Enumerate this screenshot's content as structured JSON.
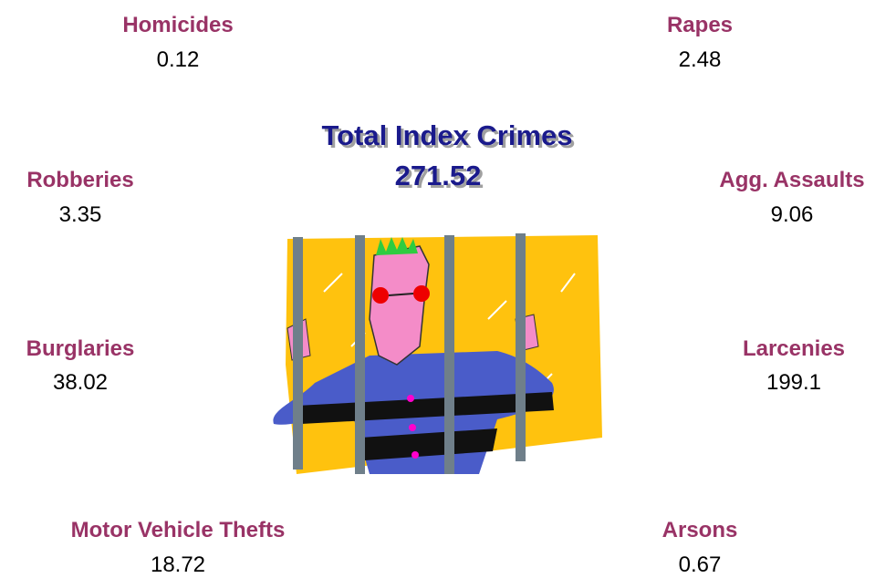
{
  "title": "Total Index Crimes",
  "total": "271.52",
  "items": [
    {
      "label": "Homicides",
      "value": "0.12"
    },
    {
      "label": "Rapes",
      "value": "2.48"
    },
    {
      "label": "Robberies",
      "value": "3.35"
    },
    {
      "label": "Agg. Assaults",
      "value": "9.06"
    },
    {
      "label": "Burglaries",
      "value": "38.02"
    },
    {
      "label": "Larcenies",
      "value": "199.1"
    },
    {
      "label": "Motor Vehicle Thefts",
      "value": "18.72"
    },
    {
      "label": "Arsons",
      "value": "0.67"
    }
  ]
}
